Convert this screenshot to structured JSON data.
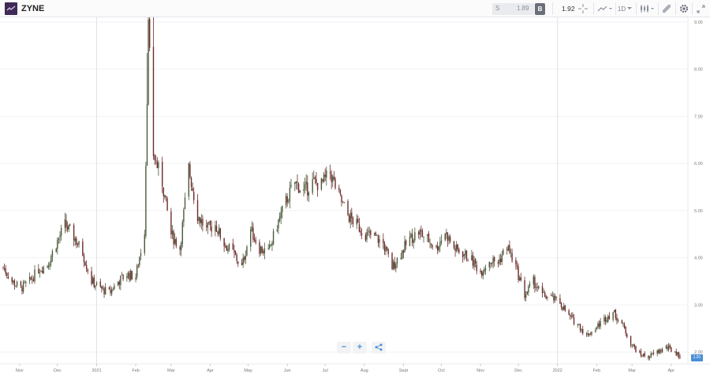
{
  "toolbar": {
    "symbol": "ZYNE",
    "sell_label": "S",
    "sell_price": "1.89",
    "buy_label": "B",
    "buy_price": "1.92",
    "interval_label": "1D",
    "icons": [
      "crosshair-icon",
      "chart-type-icon",
      "interval-dropdown",
      "candlestick-icon",
      "drawing-icon",
      "settings-icon",
      "fullscreen-icon"
    ]
  },
  "zoom": {
    "minus": "−",
    "plus": "+"
  },
  "current_price_label": "1.91",
  "chart_data": {
    "type": "bar",
    "style": "ohlc",
    "title": "",
    "xlabel": "",
    "ylabel": "",
    "ylim": [
      1.75,
      9.0
    ],
    "yticks": [
      "9.00",
      "8.00",
      "7.00",
      "6.00",
      "5.00",
      "4.00",
      "3.00",
      "2.00"
    ],
    "xticks": [
      "Nov",
      "Dec",
      "2021",
      "Feb",
      "Mar",
      "Apr",
      "May",
      "Jun",
      "Jul",
      "Aug",
      "Sept",
      "Oct",
      "Nov",
      "Dec",
      "2022",
      "Feb",
      "Mar",
      "Apr"
    ],
    "date_range": [
      "2020-10-19",
      "2022-04-08"
    ],
    "series": [
      {
        "values": [
          [
            "2020-10-19",
            3.8
          ],
          [
            "2020-10-26",
            3.5
          ],
          [
            "2020-11-02",
            3.35
          ],
          [
            "2020-11-09",
            3.5
          ],
          [
            "2020-11-16",
            3.75
          ],
          [
            "2020-11-23",
            3.85
          ],
          [
            "2020-11-30",
            4.3
          ],
          [
            "2020-12-07",
            4.7
          ],
          [
            "2020-12-14",
            4.45
          ],
          [
            "2020-12-21",
            4.1
          ],
          [
            "2020-12-28",
            3.5
          ],
          [
            "2021-01-04",
            3.35
          ],
          [
            "2021-01-11",
            3.25
          ],
          [
            "2021-01-18",
            3.5
          ],
          [
            "2021-01-25",
            3.65
          ],
          [
            "2021-02-01",
            3.6
          ],
          [
            "2021-02-08",
            4.6
          ],
          [
            "2021-02-11",
            8.9
          ],
          [
            "2021-02-15",
            6.2
          ],
          [
            "2021-02-22",
            5.6
          ],
          [
            "2021-03-01",
            4.5
          ],
          [
            "2021-03-08",
            4.2
          ],
          [
            "2021-03-15",
            5.9
          ],
          [
            "2021-03-22",
            4.9
          ],
          [
            "2021-03-29",
            4.6
          ],
          [
            "2021-04-05",
            4.7
          ],
          [
            "2021-04-12",
            4.3
          ],
          [
            "2021-04-19",
            4.1
          ],
          [
            "2021-04-26",
            3.8
          ],
          [
            "2021-05-03",
            4.6
          ],
          [
            "2021-05-10",
            4.2
          ],
          [
            "2021-05-17",
            4.1
          ],
          [
            "2021-05-24",
            4.7
          ],
          [
            "2021-05-31",
            5.2
          ],
          [
            "2021-06-07",
            5.6
          ],
          [
            "2021-06-14",
            5.4
          ],
          [
            "2021-06-21",
            5.6
          ],
          [
            "2021-06-28",
            5.55
          ],
          [
            "2021-07-05",
            5.8
          ],
          [
            "2021-07-12",
            5.3
          ],
          [
            "2021-07-19",
            4.9
          ],
          [
            "2021-07-26",
            4.7
          ],
          [
            "2021-08-02",
            4.5
          ],
          [
            "2021-08-09",
            4.45
          ],
          [
            "2021-08-16",
            4.3
          ],
          [
            "2021-08-23",
            3.8
          ],
          [
            "2021-08-30",
            4.1
          ],
          [
            "2021-09-06",
            4.4
          ],
          [
            "2021-09-13",
            4.55
          ],
          [
            "2021-09-20",
            4.4
          ],
          [
            "2021-09-27",
            4.2
          ],
          [
            "2021-10-04",
            4.55
          ],
          [
            "2021-10-11",
            4.2
          ],
          [
            "2021-10-18",
            4.1
          ],
          [
            "2021-10-25",
            3.95
          ],
          [
            "2021-11-01",
            3.7
          ],
          [
            "2021-11-08",
            3.95
          ],
          [
            "2021-11-15",
            3.9
          ],
          [
            "2021-11-22",
            4.25
          ],
          [
            "2021-11-29",
            3.8
          ],
          [
            "2021-12-06",
            3.2
          ],
          [
            "2021-12-13",
            3.5
          ],
          [
            "2021-12-20",
            3.2
          ],
          [
            "2021-12-27",
            3.15
          ],
          [
            "2022-01-03",
            3.05
          ],
          [
            "2022-01-10",
            2.75
          ],
          [
            "2022-01-17",
            2.6
          ],
          [
            "2022-01-24",
            2.35
          ],
          [
            "2022-01-31",
            2.5
          ],
          [
            "2022-02-07",
            2.7
          ],
          [
            "2022-02-14",
            2.85
          ],
          [
            "2022-02-21",
            2.6
          ],
          [
            "2022-02-28",
            2.2
          ],
          [
            "2022-03-07",
            1.95
          ],
          [
            "2022-03-14",
            1.9
          ],
          [
            "2022-03-21",
            2.0
          ],
          [
            "2022-03-28",
            2.1
          ],
          [
            "2022-04-04",
            2.0
          ],
          [
            "2022-04-08",
            1.91
          ]
        ]
      }
    ],
    "grid": true,
    "colors": {
      "up": "#4a5a3a",
      "down": "#6e2b2b"
    }
  }
}
